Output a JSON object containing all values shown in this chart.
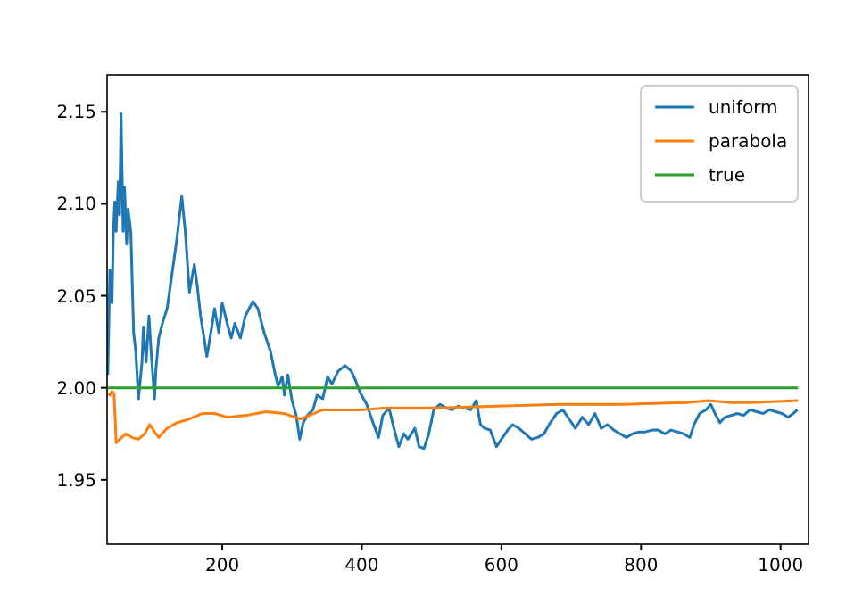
{
  "chart_data": {
    "type": "line",
    "xlim": [
      35,
      1040
    ],
    "ylim": [
      1.915,
      2.17
    ],
    "xticks": [
      200,
      400,
      600,
      800,
      1000
    ],
    "yticks": [
      {
        "value": 1.95,
        "label": "1.95"
      },
      {
        "value": 2.0,
        "label": "2.00"
      },
      {
        "value": 2.05,
        "label": "2.05"
      },
      {
        "value": 2.1,
        "label": "2.10"
      },
      {
        "value": 2.15,
        "label": "2.15"
      }
    ],
    "legend": "top right",
    "grid": false,
    "marker": "none",
    "line_style": "solid",
    "series": [
      {
        "name": "uniform",
        "color": "#1f77b4",
        "x": [
          36,
          39,
          42,
          44,
          46,
          48,
          51,
          53,
          55,
          58,
          60,
          63,
          65,
          69,
          73,
          76,
          80,
          85,
          87,
          91,
          95,
          98,
          103,
          105,
          109,
          115,
          121,
          127,
          135,
          142,
          147,
          153,
          160,
          164,
          169,
          178,
          185,
          189,
          195,
          200,
          207,
          213,
          218,
          226,
          233,
          244,
          251,
          260,
          269,
          276,
          280,
          286,
          289,
          294,
          300,
          306,
          311,
          316,
          322,
          330,
          336,
          344,
          351,
          357,
          366,
          376,
          385,
          391,
          398,
          407,
          416,
          424,
          430,
          439,
          446,
          453,
          460,
          466,
          476,
          482,
          489,
          496,
          503,
          512,
          521,
          529,
          538,
          547,
          556,
          564,
          570,
          576,
          584,
          593,
          600,
          609,
          616,
          625,
          634,
          643,
          652,
          661,
          670,
          679,
          688,
          697,
          706,
          716,
          725,
          734,
          743,
          752,
          761,
          770,
          779,
          788,
          797,
          806,
          816,
          825,
          834,
          843,
          852,
          861,
          870,
          876,
          884,
          893,
          900,
          906,
          913,
          920,
          929,
          938,
          947,
          956,
          966,
          975,
          984,
          993,
          1002,
          1011,
          1018,
          1024
        ],
        "values": [
          2.007,
          2.064,
          2.046,
          2.085,
          2.101,
          2.085,
          2.112,
          2.094,
          2.149,
          2.085,
          2.109,
          2.078,
          2.097,
          2.085,
          2.03,
          2.02,
          1.994,
          2.014,
          2.033,
          2.014,
          2.039,
          2.02,
          1.994,
          2.01,
          2.027,
          2.036,
          2.043,
          2.059,
          2.081,
          2.104,
          2.085,
          2.052,
          2.067,
          2.056,
          2.039,
          2.017,
          2.033,
          2.043,
          2.03,
          2.046,
          2.035,
          2.027,
          2.035,
          2.027,
          2.039,
          2.047,
          2.043,
          2.03,
          2.02,
          2.007,
          2.001,
          2.006,
          1.996,
          2.007,
          1.993,
          1.985,
          1.972,
          1.981,
          1.985,
          1.988,
          1.996,
          1.994,
          2.006,
          2.002,
          2.009,
          2.012,
          2.009,
          2.004,
          1.997,
          1.991,
          1.981,
          1.973,
          1.985,
          1.989,
          1.978,
          1.968,
          1.975,
          1.972,
          1.978,
          1.968,
          1.967,
          1.975,
          1.988,
          1.991,
          1.989,
          1.988,
          1.99,
          1.989,
          1.988,
          1.993,
          1.98,
          1.978,
          1.977,
          1.968,
          1.972,
          1.977,
          1.98,
          1.978,
          1.975,
          1.972,
          1.973,
          1.975,
          1.981,
          1.986,
          1.988,
          1.983,
          1.978,
          1.984,
          1.98,
          1.986,
          1.978,
          1.98,
          1.977,
          1.975,
          1.973,
          1.975,
          1.976,
          1.976,
          1.977,
          1.977,
          1.975,
          1.977,
          1.976,
          1.975,
          1.973,
          1.98,
          1.986,
          1.988,
          1.991,
          1.986,
          1.981,
          1.984,
          1.985,
          1.986,
          1.985,
          1.988,
          1.987,
          1.986,
          1.988,
          1.987,
          1.986,
          1.984,
          1.986,
          1.988
        ]
      },
      {
        "name": "parabola",
        "color": "#ff7f0e",
        "x": [
          36,
          39,
          42,
          45,
          48,
          53,
          62,
          71,
          80,
          89,
          96,
          103,
          109,
          121,
          135,
          153,
          171,
          189,
          207,
          235,
          262,
          289,
          312,
          325,
          344,
          371,
          398,
          435,
          471,
          507,
          593,
          684,
          775,
          865,
          897,
          929,
          956,
          1025
        ],
        "values": [
          1.997,
          1.996,
          1.998,
          1.997,
          1.97,
          1.972,
          1.975,
          1.973,
          1.972,
          1.975,
          1.98,
          1.976,
          1.973,
          1.978,
          1.981,
          1.983,
          1.986,
          1.986,
          1.984,
          1.985,
          1.987,
          1.986,
          1.983,
          1.985,
          1.988,
          1.988,
          1.988,
          1.989,
          1.989,
          1.989,
          1.99,
          1.991,
          1.991,
          1.992,
          1.993,
          1.992,
          1.992,
          1.993
        ]
      },
      {
        "name": "true",
        "color": "#2ca02c",
        "x": [
          36,
          1025
        ],
        "values": [
          2.0,
          2.0
        ]
      }
    ]
  }
}
